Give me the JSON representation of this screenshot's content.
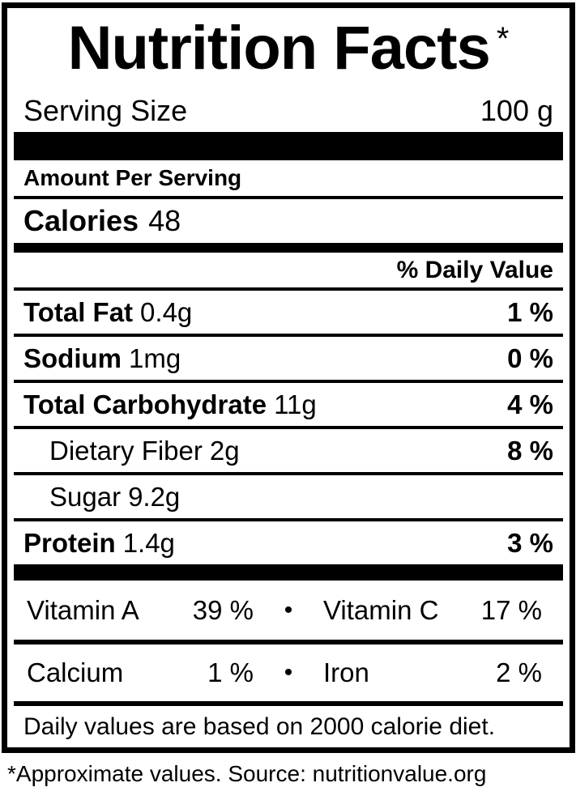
{
  "label": {
    "title": "Nutrition Facts",
    "title_note_symbol": "*",
    "serving": {
      "name": "Serving Size",
      "value": "100 g"
    },
    "amount_per_serving": "Amount Per Serving",
    "calories": {
      "name": "Calories",
      "value": "48"
    },
    "daily_value_header": "% Daily Value",
    "nutrients": [
      {
        "name": "Total Fat",
        "amount": "0.4g",
        "dv": "1 %"
      },
      {
        "name": "Sodium",
        "amount": "1mg",
        "dv": "0 %"
      },
      {
        "name": "Total Carbohydrate",
        "amount": "11g",
        "dv": "4 %"
      },
      {
        "name": "Dietary Fiber",
        "amount": "2g",
        "dv": "8 %"
      },
      {
        "name": "Sugar",
        "amount": "9.2g",
        "dv": ""
      },
      {
        "name": "Protein",
        "amount": "1.4g",
        "dv": "3 %"
      }
    ],
    "micronutrients": [
      {
        "left_name": "Vitamin A",
        "left_value": "39 %",
        "separator": "•",
        "right_name": "Vitamin C",
        "right_value": "17 %"
      },
      {
        "left_name": "Calcium",
        "left_value": "1 %",
        "separator": "•",
        "right_name": "Iron",
        "right_value": "2 %"
      }
    ],
    "daily_values_note": "Daily values are based on 2000 calorie diet.",
    "source_footnote": "*Approximate values. Source: nutritionvalue.org"
  },
  "colors": {
    "text": "#000000",
    "background": "#ffffff",
    "rule": "#000000"
  }
}
